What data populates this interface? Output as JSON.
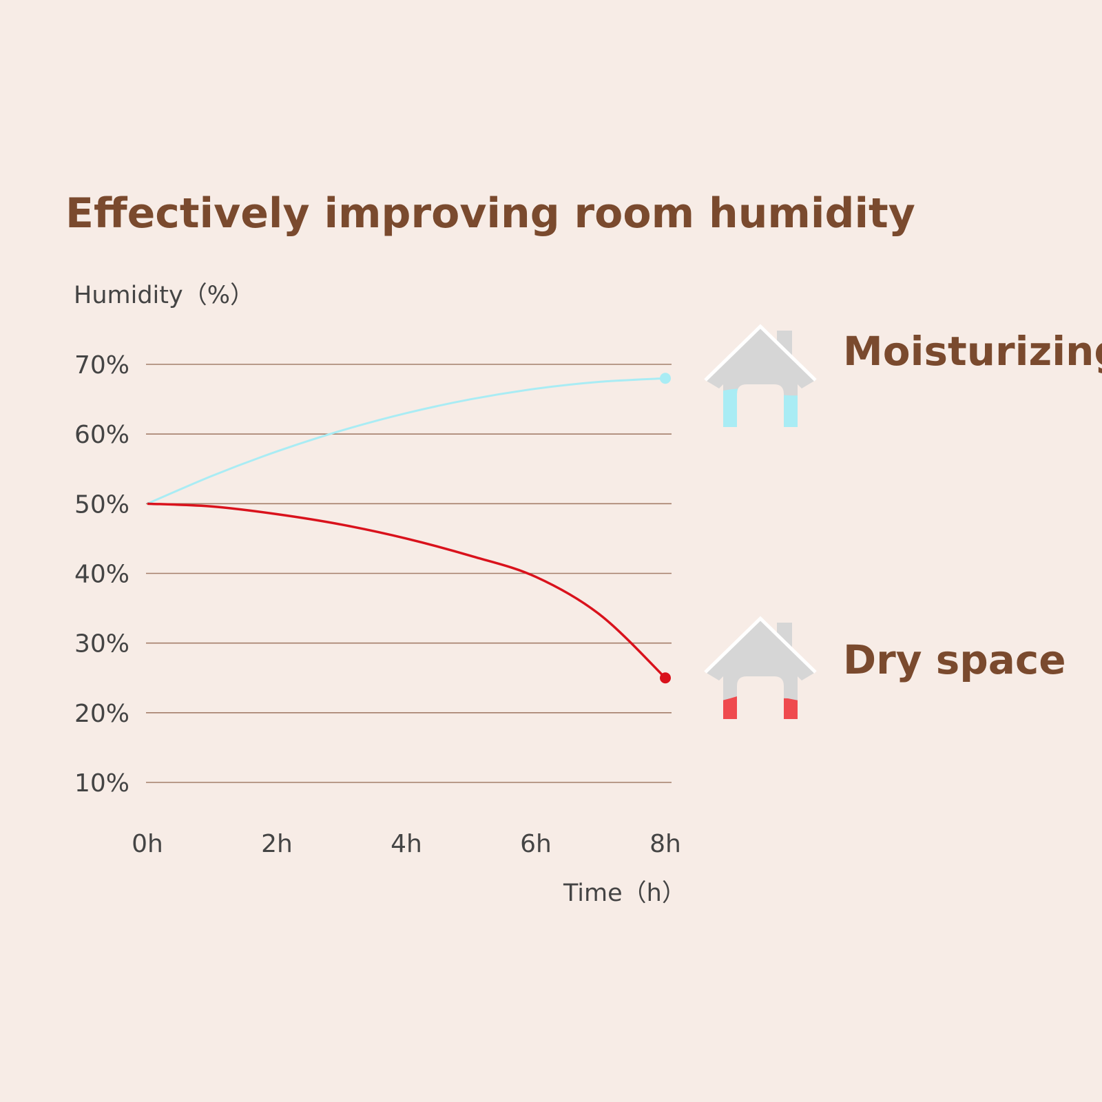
{
  "chart_data": {
    "type": "line",
    "title": "Effectively improving room humidity",
    "ylabel": "Humidity（%）",
    "xlabel": "Time（h）",
    "y_ticks": [
      "10%",
      "20%",
      "30%",
      "40%",
      "50%",
      "60%",
      "70%"
    ],
    "y_tick_values": [
      10,
      20,
      30,
      40,
      50,
      60,
      70
    ],
    "x_ticks": [
      "0h",
      "2h",
      "4h",
      "6h",
      "8h"
    ],
    "x_tick_values": [
      0,
      2,
      4,
      6,
      8
    ],
    "xlim": [
      0,
      8
    ],
    "ylim": [
      10,
      70
    ],
    "grid": "horizontal",
    "series": [
      {
        "name": "Moisturizing space",
        "color": "#a9ecf4",
        "x": [
          0,
          1,
          2,
          3,
          4,
          5,
          6,
          7,
          8
        ],
        "y": [
          50,
          54,
          57.5,
          60.5,
          63,
          65,
          66.5,
          67.5,
          68
        ]
      },
      {
        "name": "Dry space",
        "color": "#d9121c",
        "x": [
          0,
          1,
          2,
          3,
          4,
          5,
          6,
          7,
          8
        ],
        "y": [
          50,
          49.6,
          48.5,
          47,
          45,
          42.5,
          39.5,
          34,
          25
        ]
      }
    ]
  },
  "icons": {
    "moist_house": {
      "icon": "house-icon",
      "fill_color": "#a9ecf4",
      "fill_level": 0.45
    },
    "dry_house": {
      "icon": "house-icon",
      "fill_color": "#ef4a4e",
      "fill_level": 0.28
    }
  },
  "colors": {
    "background": "#f7ece6",
    "title": "#7a4a2e",
    "grid": "#a47e6a",
    "house": "#d6d6d6"
  }
}
